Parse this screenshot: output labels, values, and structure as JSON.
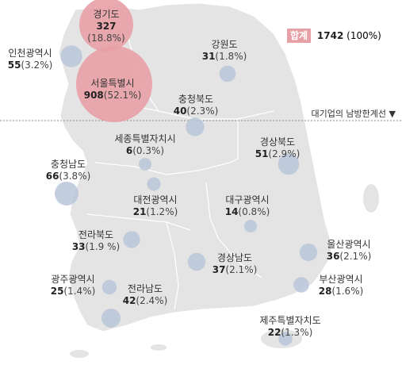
{
  "total": {
    "label": "합계",
    "value": "1742",
    "pct": "(100%)"
  },
  "divider_label": "대기업의 남방한계선 ▼",
  "colors": {
    "land": "#e4e4e4",
    "land_stroke": "#ffffff",
    "bubble_pink": "#e7a0a6",
    "bubble_blue": "#b9c6d8",
    "bubble_gray": "#c7ced8",
    "divider": "#8a8a8a"
  },
  "regions": [
    {
      "id": "gyeonggi",
      "name": "경기도",
      "value": "327",
      "pct": "(18.8%)",
      "color": "pink"
    },
    {
      "id": "incheon",
      "name": "인천광역시",
      "value": "55",
      "pct": "(3.2%)",
      "color": "blue"
    },
    {
      "id": "gangwon",
      "name": "강원도",
      "value": "31",
      "pct": "(1.8%)",
      "color": "blue"
    },
    {
      "id": "seoul",
      "name": "서울특별시",
      "value": "908",
      "pct": "(52.1%)",
      "color": "pink"
    },
    {
      "id": "chungbuk",
      "name": "충청북도",
      "value": "40",
      "pct": "(2.3%)",
      "color": "blue"
    },
    {
      "id": "sejong",
      "name": "세종특별자치시",
      "value": "6",
      "pct": "(0.3%)",
      "color": "blue"
    },
    {
      "id": "gyeongbuk",
      "name": "경상북도",
      "value": "51",
      "pct": "(2.9%)",
      "color": "blue"
    },
    {
      "id": "chungnam",
      "name": "충청남도",
      "value": "66",
      "pct": "(3.8%)",
      "color": "blue"
    },
    {
      "id": "daejeon",
      "name": "대전광역시",
      "value": "21",
      "pct": "(1.2%)",
      "color": "blue"
    },
    {
      "id": "daegu",
      "name": "대구광역시",
      "value": "14",
      "pct": "(0.8%)",
      "color": "blue"
    },
    {
      "id": "jeonbuk",
      "name": "전라북도",
      "value": "33",
      "pct": "(1.9 %)",
      "color": "blue"
    },
    {
      "id": "ulsan",
      "name": "울산광역시",
      "value": "36",
      "pct": "(2.1%)",
      "color": "blue"
    },
    {
      "id": "gyeongnam",
      "name": "경상남도",
      "value": "37",
      "pct": "(2.1%)",
      "color": "blue"
    },
    {
      "id": "gwangju",
      "name": "광주광역시",
      "value": "25",
      "pct": "(1.4%)",
      "color": "blue"
    },
    {
      "id": "busan",
      "name": "부산광역시",
      "value": "28",
      "pct": "(1.6%)",
      "color": "blue"
    },
    {
      "id": "jeonnam",
      "name": "전라남도",
      "value": "42",
      "pct": "(2.4%)",
      "color": "blue"
    },
    {
      "id": "jeju",
      "name": "제주특별자치도",
      "value": "22",
      "pct": "(1.3%)",
      "color": "blue"
    }
  ]
}
